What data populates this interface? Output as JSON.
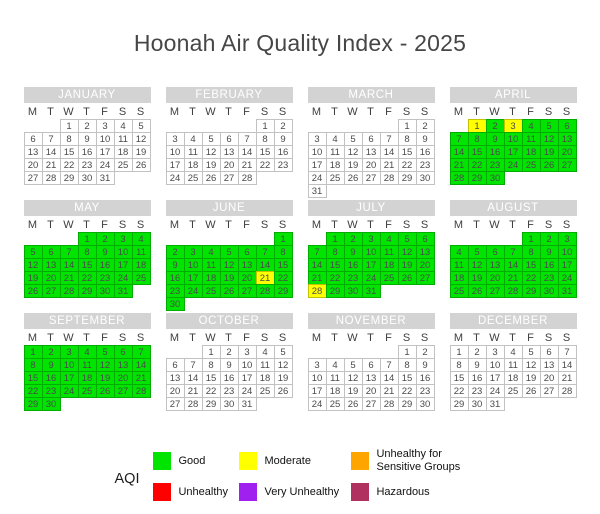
{
  "title": "Hoonah Air Quality Index - 2025",
  "legend": {
    "label": "AQI",
    "items": [
      {
        "name": "good",
        "label": "Good",
        "color": "#00e400"
      },
      {
        "name": "moderate",
        "label": "Moderate",
        "color": "#ffff00"
      },
      {
        "name": "unhealthy-sensitive",
        "label": "Unhealthy for Sensitive Groups",
        "color": "#ffa500"
      },
      {
        "name": "unhealthy",
        "label": "Unhealthy",
        "color": "#ff0000"
      },
      {
        "name": "very-unhealthy",
        "label": "Very Unhealthy",
        "color": "#a020f0"
      },
      {
        "name": "hazardous",
        "label": "Hazardous",
        "color": "#b03060"
      }
    ]
  },
  "chart_data": {
    "type": "heatmap",
    "subtype": "calendar-year",
    "title": "Hoonah Air Quality Index - 2025",
    "year": 2025,
    "weekday_labels": [
      "M",
      "T",
      "W",
      "T",
      "F",
      "S",
      "S"
    ],
    "category_colors": {
      "good": "#00e400",
      "moderate": "#ffff00",
      "unhealthy-sensitive": "#ffa500",
      "unhealthy": "#ff0000",
      "very-unhealthy": "#a020f0",
      "hazardous": "#b03060"
    },
    "months": [
      {
        "name": "JANUARY",
        "first_weekday": 2,
        "num_days": 31,
        "aqi_default": "none",
        "aqi_overrides": {}
      },
      {
        "name": "FEBRUARY",
        "first_weekday": 5,
        "num_days": 28,
        "aqi_default": "none",
        "aqi_overrides": {}
      },
      {
        "name": "MARCH",
        "first_weekday": 5,
        "num_days": 31,
        "aqi_default": "none",
        "aqi_overrides": {}
      },
      {
        "name": "APRIL",
        "first_weekday": 1,
        "num_days": 30,
        "aqi_default": "good",
        "aqi_overrides": {
          "1": "moderate",
          "3": "moderate"
        }
      },
      {
        "name": "MAY",
        "first_weekday": 3,
        "num_days": 31,
        "aqi_default": "good",
        "aqi_overrides": {}
      },
      {
        "name": "JUNE",
        "first_weekday": 6,
        "num_days": 30,
        "aqi_default": "good",
        "aqi_overrides": {
          "21": "moderate"
        }
      },
      {
        "name": "JULY",
        "first_weekday": 1,
        "num_days": 31,
        "aqi_default": "good",
        "aqi_overrides": {
          "28": "moderate"
        }
      },
      {
        "name": "AUGUST",
        "first_weekday": 4,
        "num_days": 31,
        "aqi_default": "good",
        "aqi_overrides": {}
      },
      {
        "name": "SEPTEMBER",
        "first_weekday": 0,
        "num_days": 30,
        "aqi_default": "good",
        "aqi_overrides": {}
      },
      {
        "name": "OCTOBER",
        "first_weekday": 2,
        "num_days": 31,
        "aqi_default": "none",
        "aqi_overrides": {}
      },
      {
        "name": "NOVEMBER",
        "first_weekday": 5,
        "num_days": 30,
        "aqi_default": "none",
        "aqi_overrides": {}
      },
      {
        "name": "DECEMBER",
        "first_weekday": 0,
        "num_days": 31,
        "aqi_default": "none",
        "aqi_overrides": {}
      }
    ]
  }
}
